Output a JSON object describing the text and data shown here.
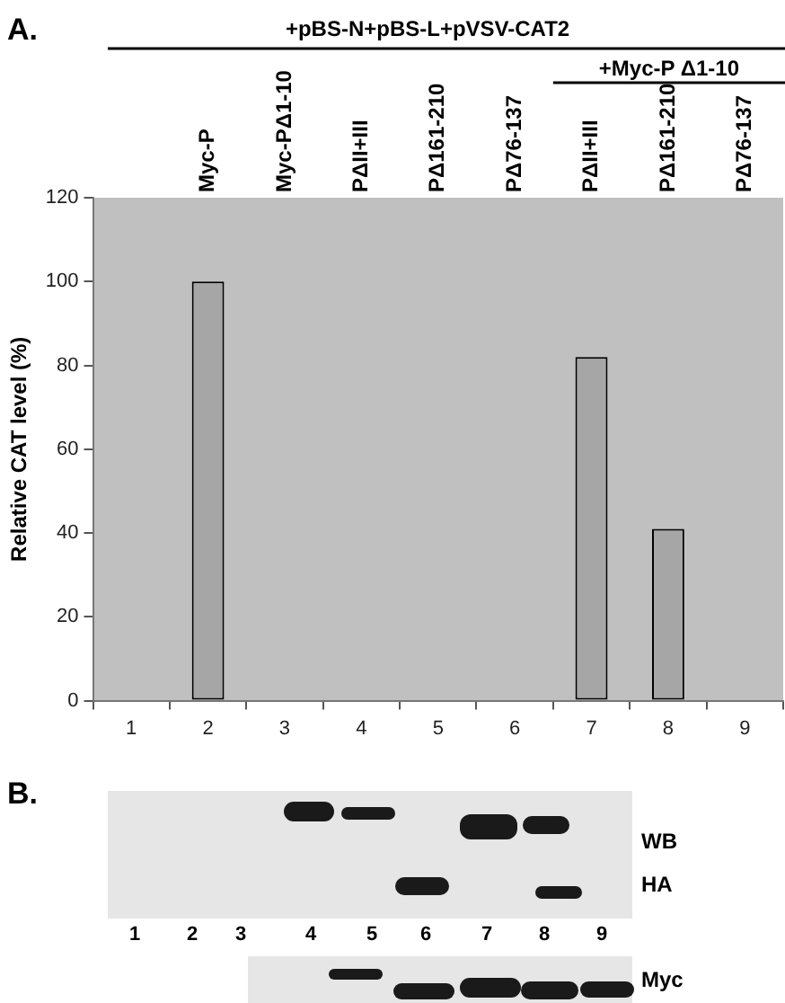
{
  "chart_data": {
    "type": "bar",
    "ylabel": "Relative CAT level (%)",
    "categories": [
      "1",
      "2",
      "3",
      "4",
      "5",
      "6",
      "7",
      "8",
      "9"
    ],
    "values": [
      0,
      100,
      0,
      0,
      0,
      0,
      82,
      41,
      0
    ],
    "color": "#a6a6a6",
    "ylim": [
      0,
      120
    ],
    "yticks": [
      0,
      20,
      40,
      60,
      80,
      100,
      120
    ],
    "grid": false,
    "legend": false,
    "annotations": [
      "A.",
      "+pBS-N+pBS-L+pVSV-CAT2",
      "+Myc-P Δ1-10",
      "Myc-P",
      "Myc-PΔ1-10",
      "PΔII+III",
      "PΔ161-210",
      "PΔ76-137",
      "PΔII+III",
      "PΔ161-210",
      "PΔ76-137",
      "B.",
      "WB",
      "HA",
      "1",
      "2",
      "3",
      "4",
      "5",
      "6",
      "7",
      "8",
      "9",
      "Myc"
    ]
  }
}
